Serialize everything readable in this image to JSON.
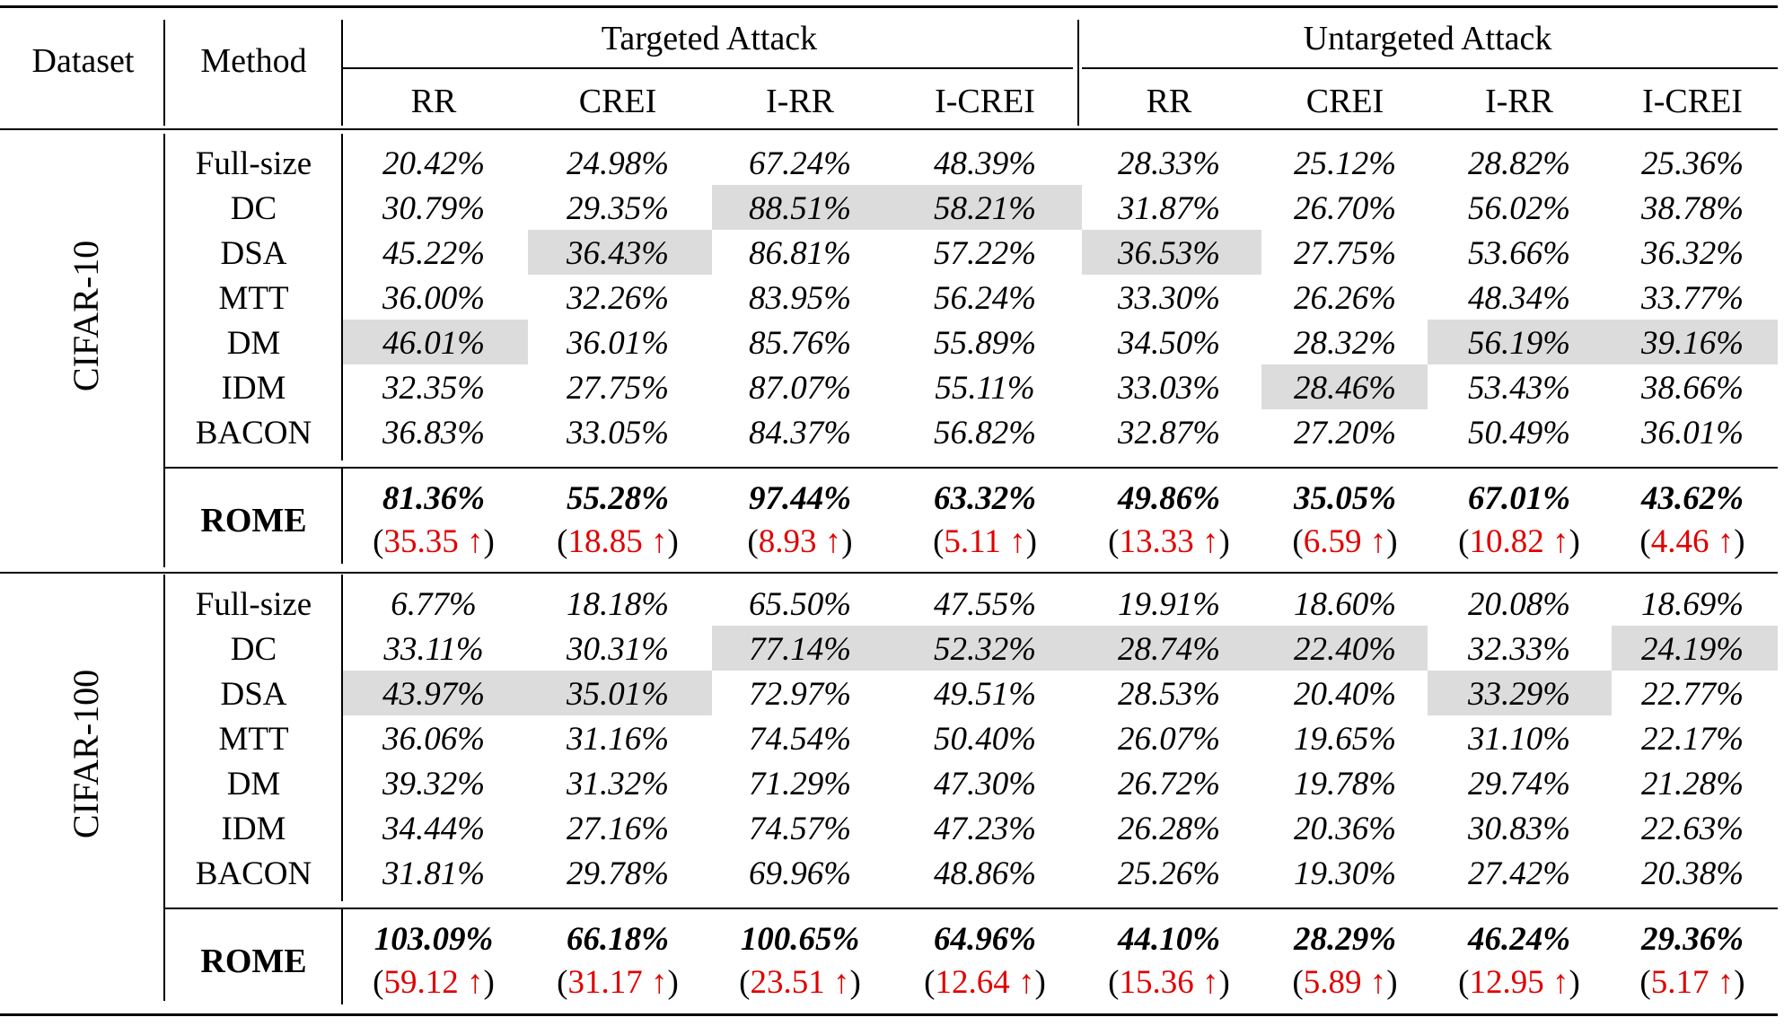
{
  "header": {
    "dataset": "Dataset",
    "method": "Method",
    "targeted": "Targeted Attack",
    "untargeted": "Untargeted Attack",
    "metrics": [
      "RR",
      "CREI",
      "I-RR",
      "I-CREI",
      "RR",
      "CREI",
      "I-RR",
      "I-CREI"
    ]
  },
  "blocks": [
    {
      "dataset": "CIFAR-10",
      "rows": [
        {
          "method": "Full-size",
          "values": [
            "20.42%",
            "24.98%",
            "67.24%",
            "48.39%",
            "28.33%",
            "25.12%",
            "28.82%",
            "25.36%"
          ],
          "highlight": [
            false,
            false,
            false,
            false,
            false,
            false,
            false,
            false
          ]
        },
        {
          "method": "DC",
          "values": [
            "30.79%",
            "29.35%",
            "88.51%",
            "58.21%",
            "31.87%",
            "26.70%",
            "56.02%",
            "38.78%"
          ],
          "highlight": [
            false,
            false,
            true,
            true,
            false,
            false,
            false,
            false
          ]
        },
        {
          "method": "DSA",
          "values": [
            "45.22%",
            "36.43%",
            "86.81%",
            "57.22%",
            "36.53%",
            "27.75%",
            "53.66%",
            "36.32%"
          ],
          "highlight": [
            false,
            true,
            false,
            false,
            true,
            false,
            false,
            false
          ]
        },
        {
          "method": "MTT",
          "values": [
            "36.00%",
            "32.26%",
            "83.95%",
            "56.24%",
            "33.30%",
            "26.26%",
            "48.34%",
            "33.77%"
          ],
          "highlight": [
            false,
            false,
            false,
            false,
            false,
            false,
            false,
            false
          ]
        },
        {
          "method": "DM",
          "values": [
            "46.01%",
            "36.01%",
            "85.76%",
            "55.89%",
            "34.50%",
            "28.32%",
            "56.19%",
            "39.16%"
          ],
          "highlight": [
            true,
            false,
            false,
            false,
            false,
            false,
            true,
            true
          ]
        },
        {
          "method": "IDM",
          "values": [
            "32.35%",
            "27.75%",
            "87.07%",
            "55.11%",
            "33.03%",
            "28.46%",
            "53.43%",
            "38.66%"
          ],
          "highlight": [
            false,
            false,
            false,
            false,
            false,
            true,
            false,
            false
          ]
        },
        {
          "method": "BACON",
          "values": [
            "36.83%",
            "33.05%",
            "84.37%",
            "56.82%",
            "32.87%",
            "27.20%",
            "50.49%",
            "36.01%"
          ],
          "highlight": [
            false,
            false,
            false,
            false,
            false,
            false,
            false,
            false
          ]
        }
      ],
      "rome": {
        "label": "ROME",
        "values": [
          "81.36%",
          "55.28%",
          "97.44%",
          "63.32%",
          "49.86%",
          "35.05%",
          "67.01%",
          "43.62%"
        ],
        "gains": [
          "35.35",
          "18.85",
          "8.93",
          "5.11",
          "13.33",
          "6.59",
          "10.82",
          "4.46"
        ]
      }
    },
    {
      "dataset": "CIFAR-100",
      "rows": [
        {
          "method": "Full-size",
          "values": [
            "6.77%",
            "18.18%",
            "65.50%",
            "47.55%",
            "19.91%",
            "18.60%",
            "20.08%",
            "18.69%"
          ],
          "highlight": [
            false,
            false,
            false,
            false,
            false,
            false,
            false,
            false
          ]
        },
        {
          "method": "DC",
          "values": [
            "33.11%",
            "30.31%",
            "77.14%",
            "52.32%",
            "28.74%",
            "22.40%",
            "32.33%",
            "24.19%"
          ],
          "highlight": [
            false,
            false,
            true,
            true,
            true,
            true,
            false,
            true
          ]
        },
        {
          "method": "DSA",
          "values": [
            "43.97%",
            "35.01%",
            "72.97%",
            "49.51%",
            "28.53%",
            "20.40%",
            "33.29%",
            "22.77%"
          ],
          "highlight": [
            true,
            true,
            false,
            false,
            false,
            false,
            true,
            false
          ]
        },
        {
          "method": "MTT",
          "values": [
            "36.06%",
            "31.16%",
            "74.54%",
            "50.40%",
            "26.07%",
            "19.65%",
            "31.10%",
            "22.17%"
          ],
          "highlight": [
            false,
            false,
            false,
            false,
            false,
            false,
            false,
            false
          ]
        },
        {
          "method": "DM",
          "values": [
            "39.32%",
            "31.32%",
            "71.29%",
            "47.30%",
            "26.72%",
            "19.78%",
            "29.74%",
            "21.28%"
          ],
          "highlight": [
            false,
            false,
            false,
            false,
            false,
            false,
            false,
            false
          ]
        },
        {
          "method": "IDM",
          "values": [
            "34.44%",
            "27.16%",
            "74.57%",
            "47.23%",
            "26.28%",
            "20.36%",
            "30.83%",
            "22.63%"
          ],
          "highlight": [
            false,
            false,
            false,
            false,
            false,
            false,
            false,
            false
          ]
        },
        {
          "method": "BACON",
          "values": [
            "31.81%",
            "29.78%",
            "69.96%",
            "48.86%",
            "25.26%",
            "19.30%",
            "27.42%",
            "20.38%"
          ],
          "highlight": [
            false,
            false,
            false,
            false,
            false,
            false,
            false,
            false
          ]
        }
      ],
      "rome": {
        "label": "ROME",
        "values": [
          "103.09%",
          "66.18%",
          "100.65%",
          "64.96%",
          "44.10%",
          "28.29%",
          "46.24%",
          "29.36%"
        ],
        "gains": [
          "59.12",
          "31.17",
          "23.51",
          "12.64",
          "15.36",
          "5.89",
          "12.95",
          "5.17"
        ]
      }
    }
  ],
  "colors": {
    "highlight": "#dcdcdc",
    "gain": "#e00000"
  },
  "icons": {
    "gain_arrow": "up-arrow"
  }
}
